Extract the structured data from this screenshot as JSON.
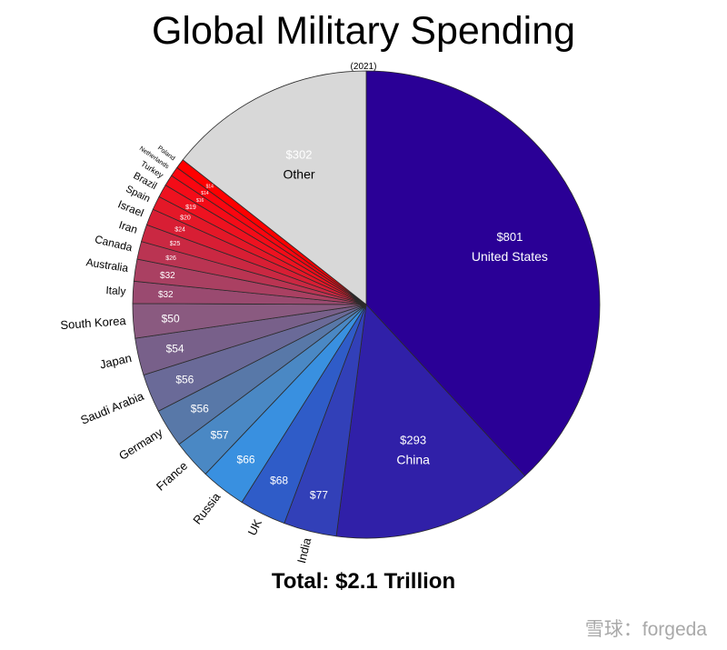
{
  "chart_data": {
    "type": "pie",
    "title": "Global Military Spending",
    "subtitle": "(2021)",
    "total_label": "Total: $2.1 Trillion",
    "start_angle": "12 o'clock, clockwise",
    "slices": [
      {
        "name": "United States",
        "value": 801,
        "label": "$801",
        "color": "#2a0096"
      },
      {
        "name": "China",
        "value": 293,
        "label": "$293",
        "color": "#3020a8"
      },
      {
        "name": "India",
        "value": 77,
        "label": "$77",
        "color": "#3240b8"
      },
      {
        "name": "UK",
        "value": 68,
        "label": "$68",
        "color": "#2f5cc8"
      },
      {
        "name": "Russia",
        "value": 66,
        "label": "$66",
        "color": "#3990e0"
      },
      {
        "name": "France",
        "value": 57,
        "label": "$57",
        "color": "#4a88c4"
      },
      {
        "name": "Germany",
        "value": 56,
        "label": "$56",
        "color": "#5878a8"
      },
      {
        "name": "Saudi Arabia",
        "value": 56,
        "label": "$56",
        "color": "#6a6a98"
      },
      {
        "name": "Japan",
        "value": 54,
        "label": "$54",
        "color": "#78608a"
      },
      {
        "name": "South Korea",
        "value": 50,
        "label": "$50",
        "color": "#8a5a80"
      },
      {
        "name": "Italy",
        "value": 32,
        "label": "$32",
        "color": "#9a4a70"
      },
      {
        "name": "Australia",
        "value": 32,
        "label": "$32",
        "color": "#aa4062"
      },
      {
        "name": "Canada",
        "value": 26,
        "label": "$26",
        "color": "#ba3452"
      },
      {
        "name": "Iran",
        "value": 25,
        "label": "$25",
        "color": "#ca2842"
      },
      {
        "name": "Israel",
        "value": 24,
        "label": "$24",
        "color": "#d81e34"
      },
      {
        "name": "Spain",
        "value": 20,
        "label": "$20",
        "color": "#e41828"
      },
      {
        "name": "Brazil",
        "value": 19,
        "label": "$19",
        "color": "#ee1220"
      },
      {
        "name": "Turkey",
        "value": 16,
        "label": "$16",
        "color": "#f40c18"
      },
      {
        "name": "Netherlands",
        "value": 14,
        "label": "$14",
        "color": "#fa0610"
      },
      {
        "name": "Poland",
        "value": 14,
        "label": "$14",
        "color": "#ff0000"
      },
      {
        "name": "Other",
        "value": 302,
        "label": "$302",
        "color": "#d8d8d8"
      }
    ]
  },
  "watermark": {
    "text": "雪球：forgeda"
  }
}
